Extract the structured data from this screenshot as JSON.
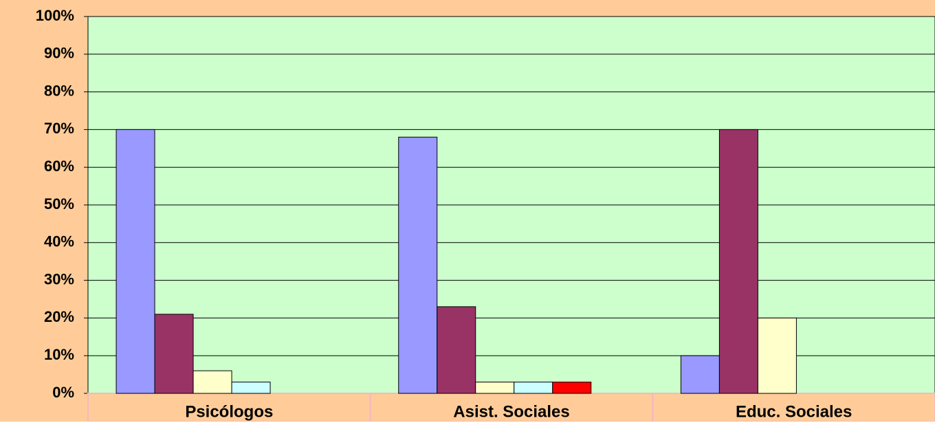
{
  "chart_data": {
    "type": "bar",
    "categories": [
      "Psicólogos",
      "Asist. Sociales",
      "Educ. Sociales"
    ],
    "series": [
      {
        "color": "#9999ff",
        "values": [
          70,
          68,
          10
        ]
      },
      {
        "color": "#993366",
        "values": [
          21,
          23,
          70
        ]
      },
      {
        "color": "#ffffcc",
        "values": [
          6,
          3,
          20
        ]
      },
      {
        "color": "#ccffff",
        "values": [
          3,
          3,
          0
        ]
      },
      {
        "color": "#ff0000",
        "values": [
          0,
          3,
          0
        ]
      }
    ],
    "ylim": [
      0,
      100
    ],
    "yticks": [
      {
        "value": 0,
        "label": "0%"
      },
      {
        "value": 10,
        "label": "10%"
      },
      {
        "value": 20,
        "label": "20%"
      },
      {
        "value": 30,
        "label": "30%"
      },
      {
        "value": 40,
        "label": "40%"
      },
      {
        "value": 50,
        "label": "50%"
      },
      {
        "value": 60,
        "label": "60%"
      },
      {
        "value": 70,
        "label": "70%"
      },
      {
        "value": 80,
        "label": "80%"
      },
      {
        "value": 90,
        "label": "90%"
      },
      {
        "value": 100,
        "label": "100%"
      }
    ],
    "grid": true
  }
}
